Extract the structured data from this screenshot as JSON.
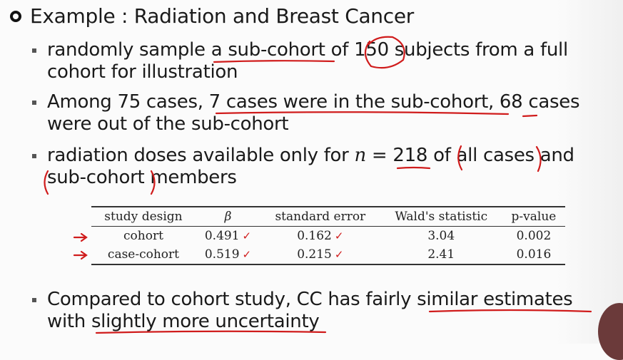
{
  "title": "Example : Radiation and Breast Cancer",
  "bullets": {
    "b1": {
      "prefix": "randomly sample ",
      "sub_cohort": "a sub-cohort",
      "mid": " of ",
      "n": "150",
      "suffix": " subjects from a full",
      "line2": "cohort for illustration"
    },
    "b2": {
      "prefix": "Among 75 cases, ",
      "underlined": "7 cases were in the sub-cohort",
      "comma": ", ",
      "n68": "68",
      "suffix": " cases",
      "line2": "were out of the sub-cohort"
    },
    "b3": {
      "prefix": "radiation doses available only for ",
      "math": "n",
      "eq": " = ",
      "n218": "218",
      "mid": " of ",
      "all_cases": "all cases",
      "suffix": " and",
      "line2a": "sub-cohort",
      "line2b": " members"
    },
    "b4": {
      "prefix": "Compared to cohort study, CC has fairly ",
      "similar": "similar estimates",
      "line2a": "with ",
      "line2b": "slightly more uncertainty"
    }
  },
  "table": {
    "headers": [
      "study design",
      "β",
      "standard error",
      "Wald's statistic",
      "p-value"
    ],
    "rows": [
      {
        "design": "cohort",
        "beta": "0.491",
        "se": "0.162",
        "wald": "3.04",
        "p": "0.002"
      },
      {
        "design": "case-cohort",
        "beta": "0.519",
        "se": "0.215",
        "wald": "2.41",
        "p": "0.016"
      }
    ],
    "check_mark": "✓"
  },
  "colors": {
    "annotation": "#d01c1c",
    "text": "#1a1a1a"
  }
}
